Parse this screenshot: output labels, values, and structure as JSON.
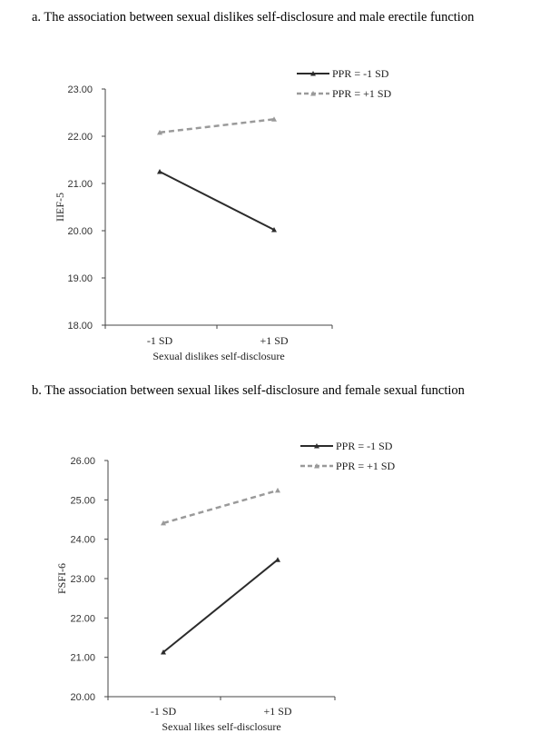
{
  "captions": {
    "a": "a. The association between sexual dislikes self-disclosure and male erectile function",
    "b": "b. The association between sexual likes self-disclosure and female sexual function"
  },
  "chart_data": [
    {
      "type": "line",
      "categories": [
        "-1 SD",
        "+1 SD"
      ],
      "xlabel": "Sexual dislikes self-disclosure",
      "ylabel": "IIEF-5",
      "ylim": [
        18,
        23
      ],
      "yticks": [
        "18.00",
        "19.00",
        "20.00",
        "21.00",
        "22.00",
        "23.00"
      ],
      "grid": false,
      "legend_position": "top-right",
      "series": [
        {
          "name": "PPR = -1 SD",
          "values": [
            21.25,
            20.02
          ],
          "color": "#2b2b2b",
          "style": "solid"
        },
        {
          "name": "PPR = +1 SD",
          "values": [
            22.08,
            22.36
          ],
          "color": "#9a9a9a",
          "style": "dashed"
        }
      ]
    },
    {
      "type": "line",
      "categories": [
        "-1 SD",
        "+1 SD"
      ],
      "xlabel": "Sexual likes self-disclosure",
      "ylabel": "FSFI-6",
      "ylim": [
        20,
        26
      ],
      "yticks": [
        "20.00",
        "21.00",
        "22.00",
        "23.00",
        "24.00",
        "25.00",
        "26.00"
      ],
      "grid": false,
      "legend_position": "top-right",
      "series": [
        {
          "name": "PPR = -1 SD",
          "values": [
            21.13,
            23.48
          ],
          "color": "#2b2b2b",
          "style": "solid"
        },
        {
          "name": "PPR = +1 SD",
          "values": [
            24.41,
            25.24
          ],
          "color": "#9a9a9a",
          "style": "dashed"
        }
      ]
    }
  ]
}
